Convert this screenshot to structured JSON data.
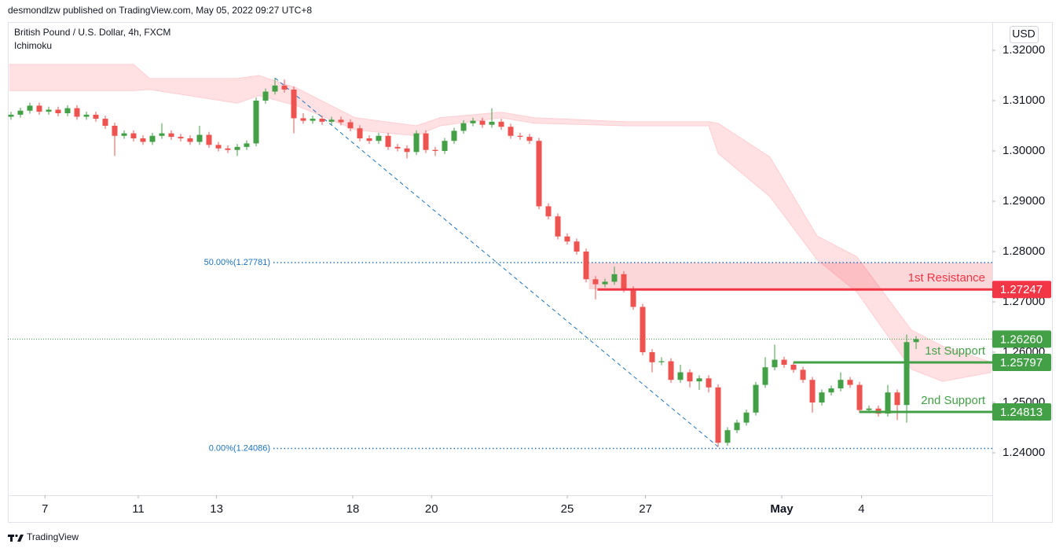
{
  "header": "desmondlzw published on TradingView.com, May 05, 2022 09:27 UTC+8",
  "footer": "TradingView",
  "chart_data": {
    "type": "candlestick",
    "title": "British Pound / U.S. Dollar, 4h, FXCM",
    "indicator": "Ichimoku",
    "currency": "USD",
    "up_color": "#43a047",
    "down_color": "#ef5350",
    "ylim": [
      1.231563,
      1.325625
    ],
    "xlim": [
      -0.333,
      104.08
    ],
    "yticks": [
      {
        "value": 1.32,
        "label": "1.32000"
      },
      {
        "value": 1.31,
        "label": "1.31000"
      },
      {
        "value": 1.3,
        "label": "1.30000"
      },
      {
        "value": 1.29,
        "label": "1.29000"
      },
      {
        "value": 1.28,
        "label": "1.28000"
      },
      {
        "value": 1.27,
        "label": "1.27000"
      },
      {
        "value": 1.26,
        "label": "1.26000"
      },
      {
        "value": 1.25,
        "label": "1.25000"
      },
      {
        "value": 1.24,
        "label": "1.24000"
      }
    ],
    "xticks": [
      {
        "value": 3.6,
        "label": "7"
      },
      {
        "value": 13.5,
        "label": "11"
      },
      {
        "value": 21.8,
        "label": "13"
      },
      {
        "value": 36.25,
        "label": "18"
      },
      {
        "value": 44.6,
        "label": "20"
      },
      {
        "value": 59,
        "label": "25"
      },
      {
        "value": 67.3,
        "label": "27"
      },
      {
        "value": 81.75,
        "label": "May"
      },
      {
        "value": 90.2,
        "label": "4"
      }
    ],
    "ohlc": [
      [
        1.3068,
        1.3078,
        1.3062,
        1.3072
      ],
      [
        1.3072,
        1.3086,
        1.3066,
        1.308
      ],
      [
        1.308,
        1.3096,
        1.3074,
        1.309
      ],
      [
        1.309,
        1.3096,
        1.3072,
        1.3078
      ],
      [
        1.3078,
        1.3088,
        1.3072,
        1.3082
      ],
      [
        1.3082,
        1.3088,
        1.3069,
        1.3075
      ],
      [
        1.3075,
        1.3091,
        1.3069,
        1.3085
      ],
      [
        1.3085,
        1.3091,
        1.3062,
        1.3068
      ],
      [
        1.3068,
        1.3078,
        1.3062,
        1.3072
      ],
      [
        1.3072,
        1.3078,
        1.3058,
        1.3064
      ],
      [
        1.3064,
        1.307,
        1.3044,
        1.305
      ],
      [
        1.305,
        1.3056,
        1.299,
        1.303
      ],
      [
        1.303,
        1.3041,
        1.3024,
        1.3035
      ],
      [
        1.3035,
        1.3041,
        1.3019,
        1.3025
      ],
      [
        1.3025,
        1.3031,
        1.3012,
        1.3018
      ],
      [
        1.3018,
        1.3036,
        1.3012,
        1.303
      ],
      [
        1.303,
        1.3055,
        1.3024,
        1.3035
      ],
      [
        1.3035,
        1.3041,
        1.3022,
        1.3028
      ],
      [
        1.3028,
        1.3034,
        1.3019,
        1.3025
      ],
      [
        1.3025,
        1.3031,
        1.3012,
        1.3018
      ],
      [
        1.3018,
        1.305,
        1.3012,
        1.3032
      ],
      [
        1.3032,
        1.3038,
        1.3006,
        1.3012
      ],
      [
        1.3012,
        1.3018,
        1.2999,
        1.3005
      ],
      [
        1.3005,
        1.3011,
        1.2996,
        1.3002
      ],
      [
        1.3002,
        1.3014,
        1.299,
        1.3008
      ],
      [
        1.3008,
        1.3021,
        1.3002,
        1.3015
      ],
      [
        1.3015,
        1.3106,
        1.3009,
        1.31
      ],
      [
        1.31,
        1.3124,
        1.3094,
        1.3118
      ],
      [
        1.3118,
        1.3145,
        1.3112,
        1.313
      ],
      [
        1.313,
        1.3142,
        1.3116,
        1.3122
      ],
      [
        1.3122,
        1.3128,
        1.3035,
        1.3065
      ],
      [
        1.3065,
        1.3075,
        1.3054,
        1.306
      ],
      [
        1.306,
        1.307,
        1.3054,
        1.3064
      ],
      [
        1.3064,
        1.307,
        1.3052,
        1.3058
      ],
      [
        1.3058,
        1.3068,
        1.3052,
        1.3062
      ],
      [
        1.3062,
        1.3068,
        1.3051,
        1.3057
      ],
      [
        1.3057,
        1.3063,
        1.3039,
        1.3045
      ],
      [
        1.3045,
        1.3051,
        1.3019,
        1.3025
      ],
      [
        1.3025,
        1.3031,
        1.3014,
        1.302
      ],
      [
        1.302,
        1.3036,
        1.3014,
        1.303
      ],
      [
        1.303,
        1.3036,
        1.3002,
        1.3008
      ],
      [
        1.3008,
        1.3014,
        1.2999,
        1.3005
      ],
      [
        1.3005,
        1.3011,
        1.2985,
        1.2998
      ],
      [
        1.2998,
        1.3041,
        1.2992,
        1.3035
      ],
      [
        1.3035,
        1.3041,
        1.2996,
        1.3002
      ],
      [
        1.3002,
        1.3008,
        1.299,
        1.3
      ],
      [
        1.3,
        1.3026,
        1.2994,
        1.302
      ],
      [
        1.302,
        1.3046,
        1.3014,
        1.304
      ],
      [
        1.304,
        1.3061,
        1.3034,
        1.3055
      ],
      [
        1.3055,
        1.3066,
        1.3049,
        1.306
      ],
      [
        1.306,
        1.3066,
        1.3046,
        1.3052
      ],
      [
        1.3052,
        1.3085,
        1.3046,
        1.3058
      ],
      [
        1.3058,
        1.3064,
        1.3042,
        1.3048
      ],
      [
        1.3048,
        1.3054,
        1.3024,
        1.303
      ],
      [
        1.303,
        1.3036,
        1.3022,
        1.3028
      ],
      [
        1.3028,
        1.3034,
        1.3014,
        1.302
      ],
      [
        1.302,
        1.3026,
        1.2884,
        1.289
      ],
      [
        1.289,
        1.2896,
        1.2864,
        1.287
      ],
      [
        1.287,
        1.2876,
        1.2824,
        1.283
      ],
      [
        1.283,
        1.2836,
        1.2814,
        1.282
      ],
      [
        1.282,
        1.2826,
        1.2794,
        1.28
      ],
      [
        1.28,
        1.2806,
        1.2739,
        1.2745
      ],
      [
        1.2745,
        1.2751,
        1.2705,
        1.2735
      ],
      [
        1.2735,
        1.2746,
        1.2729,
        1.274
      ],
      [
        1.274,
        1.277,
        1.2734,
        1.2755
      ],
      [
        1.2755,
        1.2761,
        1.2719,
        1.2725
      ],
      [
        1.2725,
        1.2731,
        1.2684,
        1.269
      ],
      [
        1.269,
        1.2696,
        1.2594,
        1.26
      ],
      [
        1.26,
        1.2606,
        1.256,
        1.258
      ],
      [
        1.258,
        1.259,
        1.2574,
        1.2582
      ],
      [
        1.2582,
        1.2588,
        1.2539,
        1.2545
      ],
      [
        1.2545,
        1.2575,
        1.2539,
        1.256
      ],
      [
        1.256,
        1.2566,
        1.253,
        1.2542
      ],
      [
        1.2542,
        1.2554,
        1.2525,
        1.2548
      ],
      [
        1.2548,
        1.2554,
        1.252,
        1.253
      ],
      [
        1.253,
        1.2536,
        1.2412,
        1.242
      ],
      [
        1.242,
        1.2451,
        1.2414,
        1.2445
      ],
      [
        1.2445,
        1.2466,
        1.2439,
        1.246
      ],
      [
        1.246,
        1.2486,
        1.2454,
        1.248
      ],
      [
        1.248,
        1.2541,
        1.2474,
        1.2535
      ],
      [
        1.2535,
        1.259,
        1.2529,
        1.257
      ],
      [
        1.257,
        1.2615,
        1.2564,
        1.2585
      ],
      [
        1.2585,
        1.2591,
        1.2569,
        1.2575
      ],
      [
        1.2575,
        1.2581,
        1.2559,
        1.2565
      ],
      [
        1.2565,
        1.2571,
        1.2539,
        1.2545
      ],
      [
        1.2545,
        1.2551,
        1.248,
        1.25
      ],
      [
        1.25,
        1.2526,
        1.2494,
        1.252
      ],
      [
        1.252,
        1.2534,
        1.2514,
        1.2528
      ],
      [
        1.2528,
        1.256,
        1.2522,
        1.2545
      ],
      [
        1.2545,
        1.2551,
        1.2529,
        1.2535
      ],
      [
        1.2535,
        1.2541,
        1.2479,
        1.2485
      ],
      [
        1.2485,
        1.2494,
        1.2479,
        1.2488
      ],
      [
        1.2488,
        1.2494,
        1.2472,
        1.2478
      ],
      [
        1.2478,
        1.2535,
        1.2472,
        1.252
      ],
      [
        1.252,
        1.2526,
        1.2465,
        1.2495
      ],
      [
        1.2495,
        1.2635,
        1.246,
        1.262
      ],
      [
        1.262,
        1.2632,
        1.2606,
        1.2626
      ]
    ],
    "cloud": {
      "x": [
        -0.2,
        13,
        14.7,
        24,
        26.3,
        30.3,
        36.5,
        43,
        45.5,
        52,
        55.5,
        65.3,
        74,
        75,
        80.5,
        85.5,
        89.7,
        95.5,
        98.8,
        104
      ],
      "upper": [
        1.3172,
        1.3172,
        1.3144,
        1.3144,
        1.315,
        1.3125,
        1.3066,
        1.305,
        1.3066,
        1.3077,
        1.3066,
        1.3058,
        1.3058,
        1.3055,
        1.2988,
        1.2831,
        1.279,
        1.2644,
        1.2612,
        1.258
      ],
      "lower": [
        1.312,
        1.312,
        1.3122,
        1.3095,
        1.311,
        1.309,
        1.3042,
        1.303,
        1.305,
        1.3066,
        1.3055,
        1.305,
        1.305,
        1.2995,
        1.2909,
        1.2784,
        1.272,
        1.2566,
        1.2542,
        1.256
      ],
      "color": "#ffcdd2"
    },
    "fibs": [
      {
        "label": "50.00%(1.27781)",
        "value": 1.27781
      },
      {
        "label": "0.00%(1.24086)",
        "value": 1.24086
      }
    ],
    "fib_color": "#1e73be",
    "levels": [
      {
        "label": "1st Resistance",
        "value": 1.27247,
        "color": "#f23645"
      },
      {
        "label": "1st Support",
        "value": 1.25797,
        "color": "#43a047"
      },
      {
        "label": "2nd Support",
        "value": 1.24813,
        "color": "#43a047"
      }
    ],
    "last_price": {
      "value": 1.2626,
      "label": "1.26260",
      "color": "#43a047"
    }
  }
}
